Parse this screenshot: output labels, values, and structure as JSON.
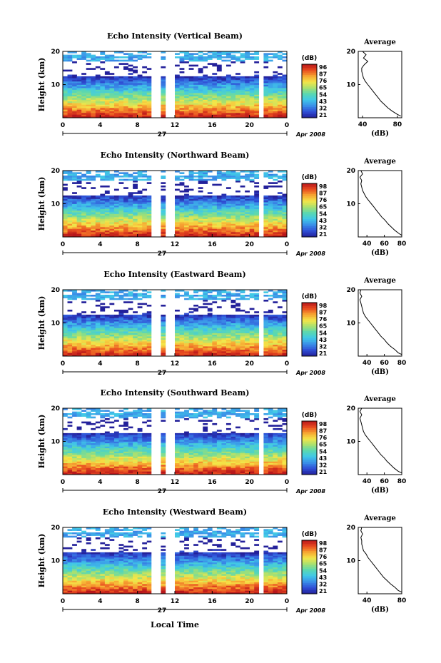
{
  "figure": {
    "xlabel": "Local Time",
    "date_label": "Apr 2008",
    "day_label": "27",
    "ylabel": "Height (km)",
    "colorbar_unit": "(dB)",
    "profile_title": "Average",
    "profile_xlabel": "(dB)"
  },
  "chart_data": [
    {
      "type": "heatmap",
      "title": "Echo Intensity (Vertical Beam)",
      "xticks": [
        "0",
        "4",
        "8",
        "12",
        "16",
        "20",
        "0"
      ],
      "xlim": [
        0,
        24
      ],
      "ylim": [
        0,
        20
      ],
      "yticks": [
        "10",
        "20"
      ],
      "colorbar_ticks": [
        "96",
        "87",
        "76",
        "65",
        "54",
        "43",
        "32",
        "21"
      ],
      "colorbar_range": [
        21,
        96
      ],
      "gaps_hours": [
        [
          9.5,
          10.3
        ],
        [
          11.2,
          12.0
        ],
        [
          21.1,
          21.5
        ]
      ],
      "profile": {
        "xlim": [
          35,
          85
        ],
        "xticks": [
          "40",
          "80"
        ],
        "heights": [
          0.5,
          1,
          2,
          3,
          4,
          5,
          6,
          7,
          8,
          9,
          10,
          11,
          12,
          13,
          14,
          15,
          16,
          17,
          18,
          19,
          20
        ],
        "values": [
          84,
          80,
          74,
          69,
          65,
          61,
          58,
          55,
          52,
          49,
          46,
          43,
          41,
          40,
          39,
          39,
          42,
          46,
          41,
          44,
          40
        ]
      }
    },
    {
      "type": "heatmap",
      "title": "Echo Intensity (Northward Beam)",
      "xticks": [
        "0",
        "4",
        "8",
        "12",
        "16",
        "20",
        "0"
      ],
      "xlim": [
        0,
        24
      ],
      "ylim": [
        0,
        20
      ],
      "yticks": [
        "10",
        "20"
      ],
      "colorbar_ticks": [
        "98",
        "87",
        "76",
        "65",
        "54",
        "43",
        "32",
        "21"
      ],
      "colorbar_range": [
        21,
        98
      ],
      "gaps_hours": [
        [
          9.5,
          10.3
        ],
        [
          11.2,
          12.0
        ],
        [
          21.1,
          21.5
        ]
      ],
      "profile": {
        "xlim": [
          30,
          80
        ],
        "xticks": [
          "40",
          "60",
          "80"
        ],
        "heights": [
          0.5,
          1,
          2,
          3,
          4,
          5,
          6,
          7,
          8,
          9,
          10,
          11,
          12,
          13,
          14,
          15,
          16,
          17,
          18,
          19,
          20
        ],
        "values": [
          80,
          77,
          72,
          68,
          64,
          61,
          57,
          54,
          51,
          48,
          45,
          42,
          39,
          37,
          35,
          34,
          33,
          34,
          32,
          35,
          33
        ]
      }
    },
    {
      "type": "heatmap",
      "title": "Echo Intensity (Eastward Beam)",
      "xticks": [
        "0",
        "4",
        "8",
        "12",
        "16",
        "20",
        "0"
      ],
      "xlim": [
        0,
        24
      ],
      "ylim": [
        0,
        20
      ],
      "yticks": [
        "10",
        "20"
      ],
      "colorbar_ticks": [
        "98",
        "87",
        "76",
        "65",
        "54",
        "43",
        "32",
        "21"
      ],
      "colorbar_range": [
        21,
        98
      ],
      "gaps_hours": [
        [
          9.5,
          10.3
        ],
        [
          11.2,
          12.0
        ],
        [
          21.1,
          21.5
        ]
      ],
      "profile": {
        "xlim": [
          30,
          80
        ],
        "xticks": [
          "40",
          "60",
          "80"
        ],
        "heights": [
          0.5,
          1,
          2,
          3,
          4,
          5,
          6,
          7,
          8,
          9,
          10,
          11,
          12,
          13,
          14,
          15,
          16,
          17,
          18,
          19,
          20
        ],
        "values": [
          80,
          76,
          72,
          67,
          63,
          60,
          56,
          53,
          50,
          47,
          44,
          41,
          38,
          36,
          35,
          34,
          33,
          32,
          34,
          32,
          33
        ]
      }
    },
    {
      "type": "heatmap",
      "title": "Echo Intensity (Southward Beam)",
      "xticks": [
        "0",
        "4",
        "8",
        "12",
        "16",
        "20",
        "0"
      ],
      "xlim": [
        0,
        24
      ],
      "ylim": [
        0,
        20
      ],
      "yticks": [
        "10",
        "20"
      ],
      "colorbar_ticks": [
        "98",
        "87",
        "76",
        "65",
        "54",
        "43",
        "32",
        "21"
      ],
      "colorbar_range": [
        21,
        98
      ],
      "gaps_hours": [
        [
          9.5,
          10.3
        ],
        [
          11.2,
          12.0
        ],
        [
          21.1,
          21.5
        ]
      ],
      "profile": {
        "xlim": [
          30,
          80
        ],
        "xticks": [
          "40",
          "60",
          "80"
        ],
        "heights": [
          0.5,
          1,
          2,
          3,
          4,
          5,
          6,
          7,
          8,
          9,
          10,
          11,
          12,
          13,
          14,
          15,
          16,
          17,
          18,
          19,
          20
        ],
        "values": [
          80,
          76,
          71,
          67,
          63,
          60,
          56,
          53,
          50,
          47,
          44,
          41,
          38,
          36,
          35,
          34,
          33,
          32,
          34,
          32,
          34
        ]
      }
    },
    {
      "type": "heatmap",
      "title": "Echo Intensity (Westward Beam)",
      "xticks": [
        "0",
        "4",
        "8",
        "12",
        "16",
        "20",
        "0"
      ],
      "xlim": [
        0,
        24
      ],
      "ylim": [
        0,
        20
      ],
      "yticks": [
        "10",
        "20"
      ],
      "colorbar_ticks": [
        "98",
        "87",
        "76",
        "65",
        "54",
        "43",
        "32",
        "21"
      ],
      "colorbar_range": [
        21,
        98
      ],
      "gaps_hours": [
        [
          9.5,
          10.3
        ],
        [
          11.2,
          12.0
        ],
        [
          21.1,
          21.5
        ]
      ],
      "profile": {
        "xlim": [
          30,
          80
        ],
        "xticks": [
          "40",
          "80"
        ],
        "heights": [
          0.5,
          1,
          2,
          3,
          4,
          5,
          6,
          7,
          8,
          9,
          10,
          11,
          12,
          13,
          14,
          15,
          16,
          17,
          18,
          19,
          20
        ],
        "values": [
          80,
          76,
          72,
          67,
          63,
          59,
          56,
          53,
          50,
          47,
          44,
          41,
          39,
          36,
          35,
          34,
          34,
          33,
          35,
          33,
          34
        ]
      }
    }
  ],
  "colors": {
    "colormap": [
      "#23209a",
      "#2f4fd6",
      "#3a8fe8",
      "#40c8e8",
      "#5ad8b0",
      "#a8e070",
      "#f4e648",
      "#f7a431",
      "#e84a1f",
      "#b8161a"
    ]
  }
}
